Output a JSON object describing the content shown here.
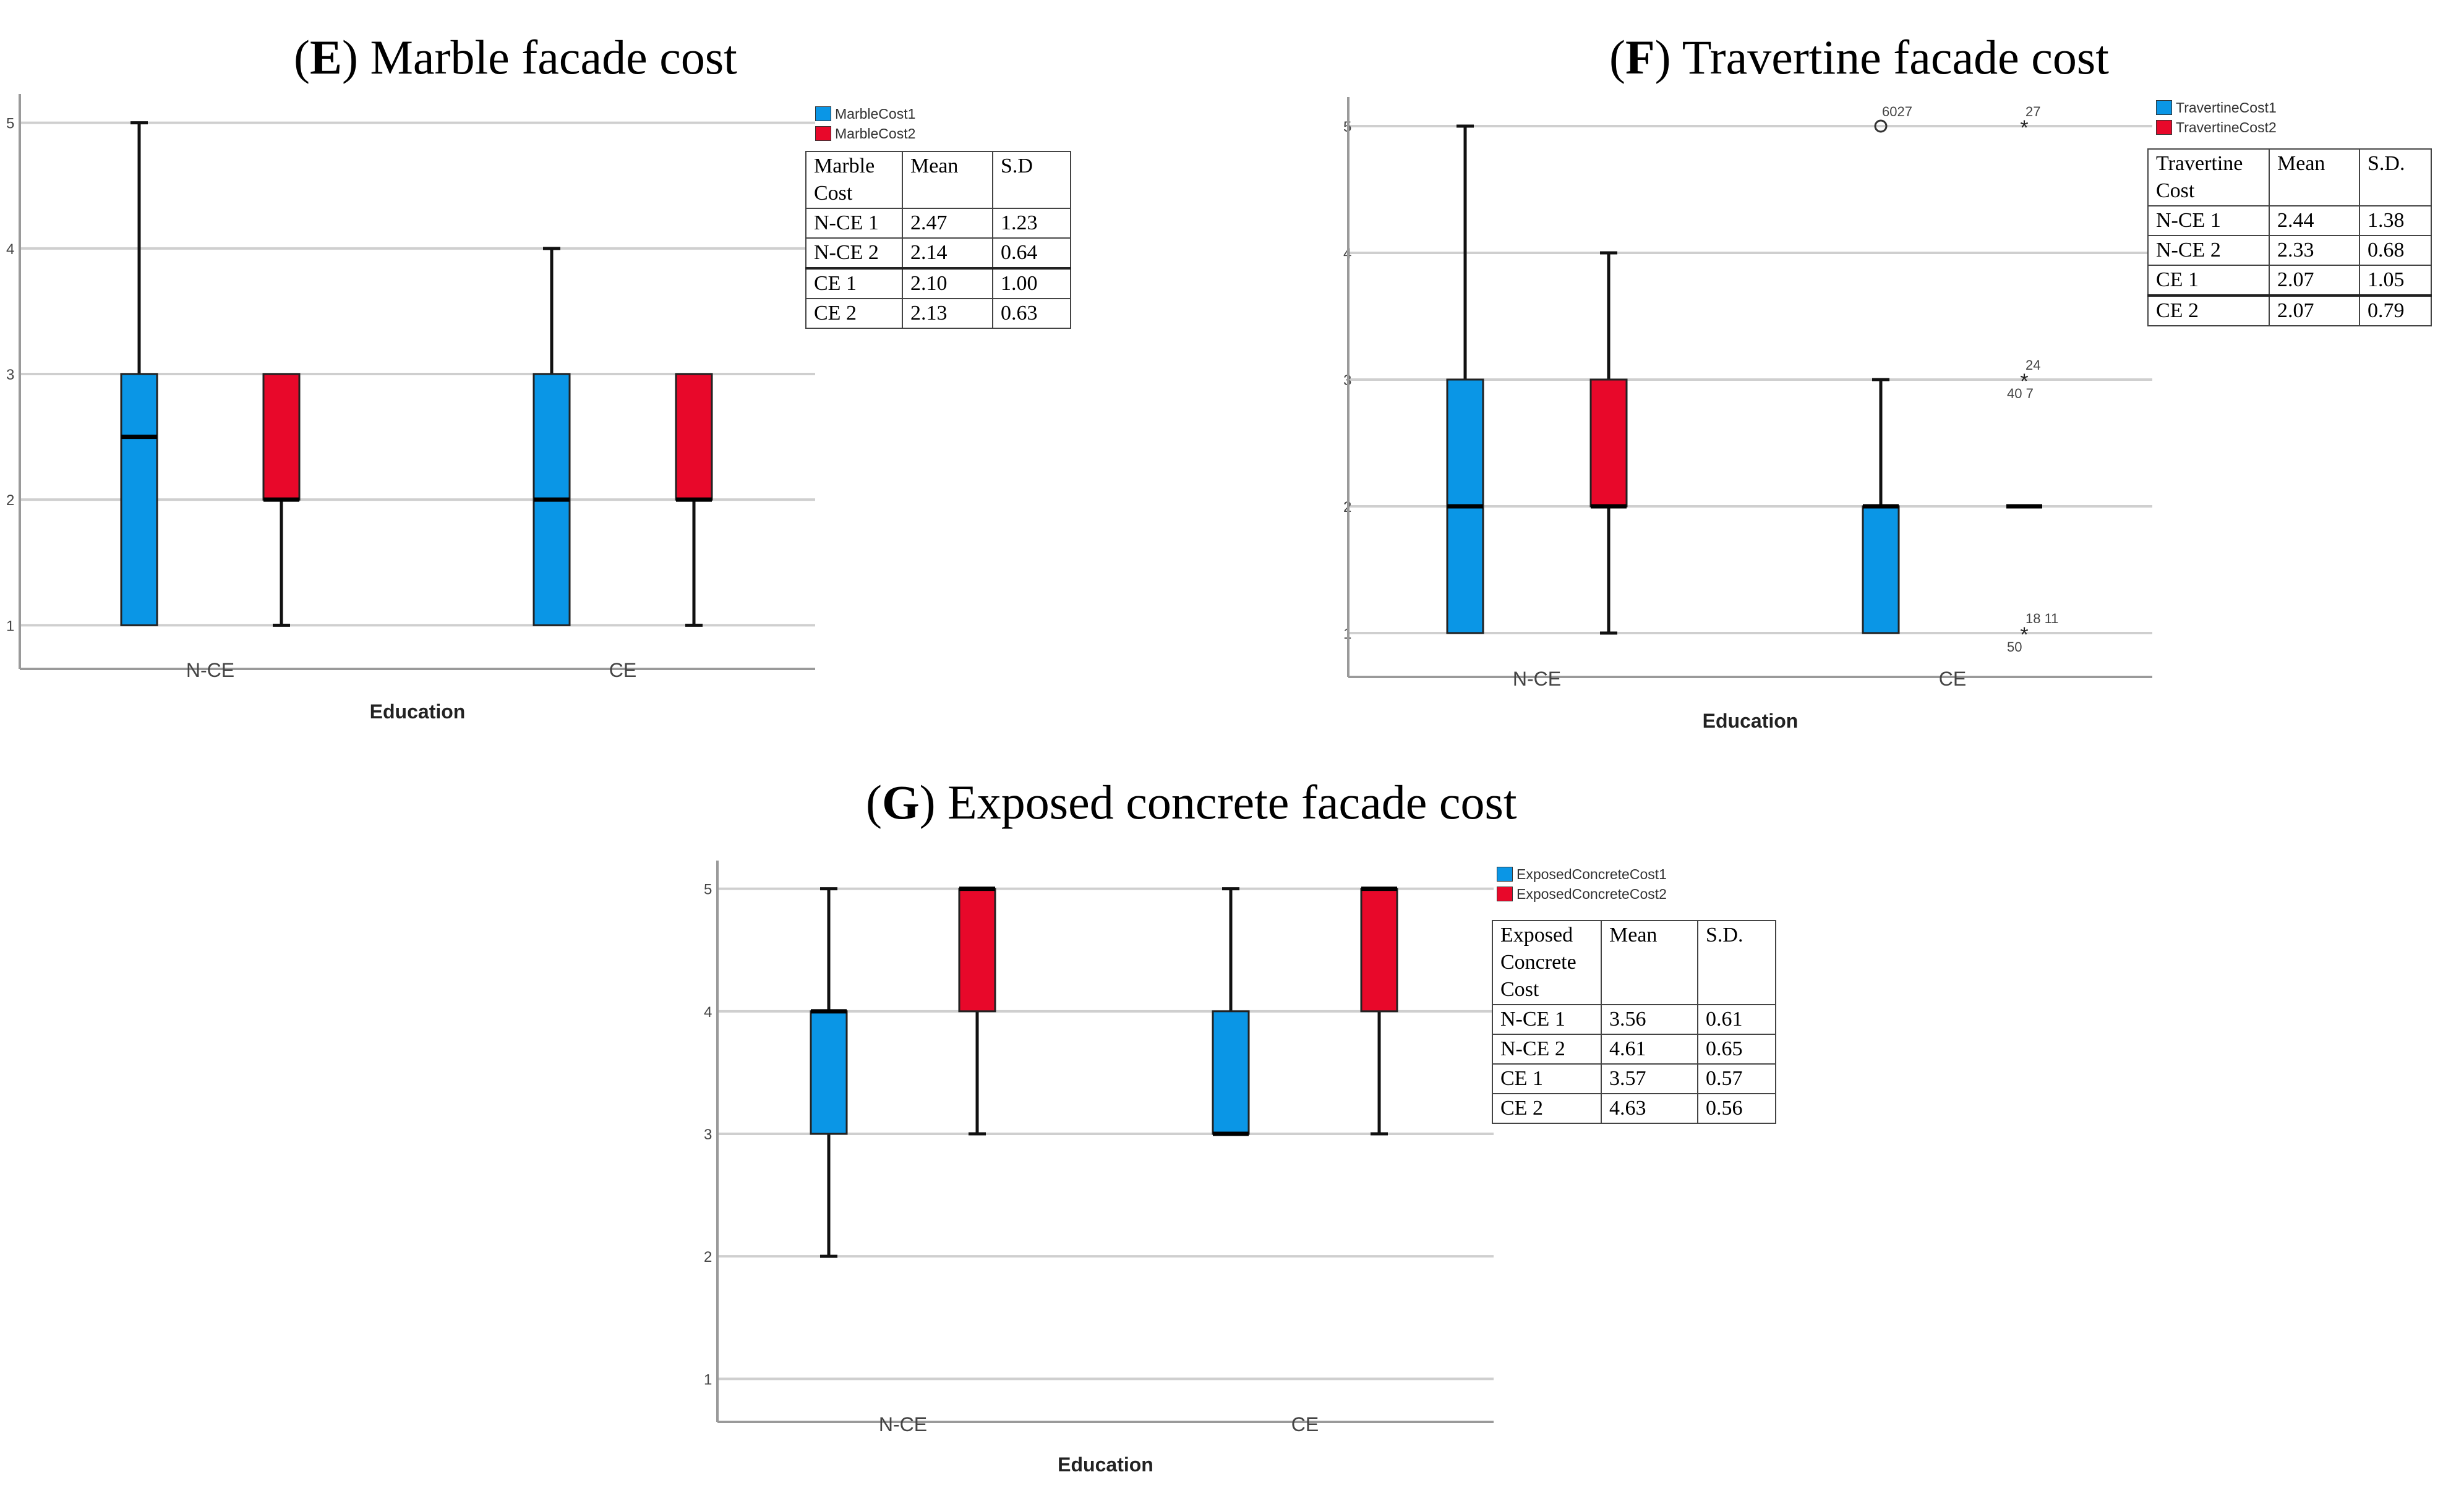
{
  "chart_data": [
    {
      "id": "E",
      "type": "boxplot",
      "title_letter": "E",
      "title_rest": "Marble facade cost",
      "xlabel": "Education",
      "categories": [
        "N-CE",
        "CE"
      ],
      "yticks": [
        1,
        2,
        3,
        4,
        5
      ],
      "ylim": [
        0.8,
        5.2
      ],
      "series": [
        {
          "name": "MarbleCost1",
          "color": "#0A96E6",
          "boxes": [
            {
              "min": 1,
              "q1": 1,
              "median": 2.5,
              "q3": 3,
              "max": 5
            },
            {
              "min": 1,
              "q1": 1,
              "median": 2,
              "q3": 3,
              "max": 4
            }
          ]
        },
        {
          "name": "MarbleCost2",
          "color": "#E8082A",
          "boxes": [
            {
              "min": 1,
              "q1": 2,
              "median": 2,
              "q3": 3,
              "max": 3
            },
            {
              "min": 1,
              "q1": 2,
              "median": 2,
              "q3": 3,
              "max": 3
            }
          ]
        }
      ],
      "outliers": [],
      "table": {
        "header": [
          "Marble\nCost",
          "Mean",
          "S.D"
        ],
        "rows": [
          [
            "N-CE 1",
            "2.47",
            "1.23"
          ],
          [
            "N-CE 2",
            "2.14",
            "0.64"
          ],
          [
            "CE 1",
            "2.10",
            "1.00"
          ],
          [
            "CE 2",
            "2.13",
            "0.63"
          ]
        ]
      }
    },
    {
      "id": "F",
      "type": "boxplot",
      "title_letter": "F",
      "title_rest": "Travertine facade cost",
      "xlabel": "Education",
      "categories": [
        "N-CE",
        "CE"
      ],
      "yticks": [
        1,
        2,
        3,
        4,
        5
      ],
      "ylim": [
        0.8,
        5.2
      ],
      "series": [
        {
          "name": "TravertineCost1",
          "color": "#0A96E6",
          "boxes": [
            {
              "min": 1,
              "q1": 1,
              "median": 2,
              "q3": 3,
              "max": 5
            },
            {
              "min": 1,
              "q1": 1,
              "median": 2,
              "q3": 2,
              "max": 3
            }
          ]
        },
        {
          "name": "TravertineCost2",
          "color": "#E8082A",
          "boxes": [
            {
              "min": 1,
              "q1": 2,
              "median": 2,
              "q3": 3,
              "max": 4
            },
            {
              "min": 2,
              "q1": 2,
              "median": 2,
              "q3": 2,
              "max": 2
            }
          ]
        }
      ],
      "outliers": [
        {
          "category": 1,
          "series": 0,
          "value": 5,
          "marker": "circle",
          "label": "6027"
        },
        {
          "category": 1,
          "series": 1,
          "value": 5,
          "marker": "star",
          "label": "27"
        },
        {
          "category": 1,
          "series": 1,
          "value": 3,
          "marker": "star",
          "label": "24",
          "label2": "40 7"
        },
        {
          "category": 1,
          "series": 1,
          "value": 1,
          "marker": "star",
          "label": "18 11",
          "label2": "50"
        }
      ],
      "table": {
        "header": [
          "Travertine\nCost",
          "Mean",
          "S.D."
        ],
        "rows": [
          [
            "N-CE 1",
            "2.44",
            "1.38"
          ],
          [
            "N-CE 2",
            "2.33",
            "0.68"
          ],
          [
            "CE 1",
            "2.07",
            "1.05"
          ],
          [
            "CE 2",
            "2.07",
            "0.79"
          ]
        ]
      }
    },
    {
      "id": "G",
      "type": "boxplot",
      "title_letter": "G",
      "title_rest": "Exposed concrete facade cost",
      "xlabel": "Education",
      "categories": [
        "N-CE",
        "CE"
      ],
      "yticks": [
        1,
        2,
        3,
        4,
        5
      ],
      "ylim": [
        0.8,
        5.2
      ],
      "series": [
        {
          "name": "ExposedConcreteCost1",
          "color": "#0A96E6",
          "boxes": [
            {
              "min": 2,
              "q1": 3,
              "median": 4,
              "q3": 4,
              "max": 5
            },
            {
              "min": 3,
              "q1": 3,
              "median": 3,
              "q3": 4,
              "max": 5
            }
          ]
        },
        {
          "name": "ExposedConcreteCost2",
          "color": "#E8082A",
          "boxes": [
            {
              "min": 3,
              "q1": 4,
              "median": 5,
              "q3": 5,
              "max": 5
            },
            {
              "min": 3,
              "q1": 4,
              "median": 5,
              "q3": 5,
              "max": 5
            }
          ]
        }
      ],
      "outliers": [],
      "table": {
        "header": [
          "Exposed\nConcrete\nCost",
          "Mean",
          "S.D."
        ],
        "rows": [
          [
            "N-CE 1",
            "3.56",
            "0.61"
          ],
          [
            "N-CE 2",
            "4.61",
            "0.65"
          ],
          [
            "CE 1",
            "3.57",
            "0.57"
          ],
          [
            "CE 2",
            "4.63",
            "0.56"
          ]
        ]
      }
    }
  ]
}
